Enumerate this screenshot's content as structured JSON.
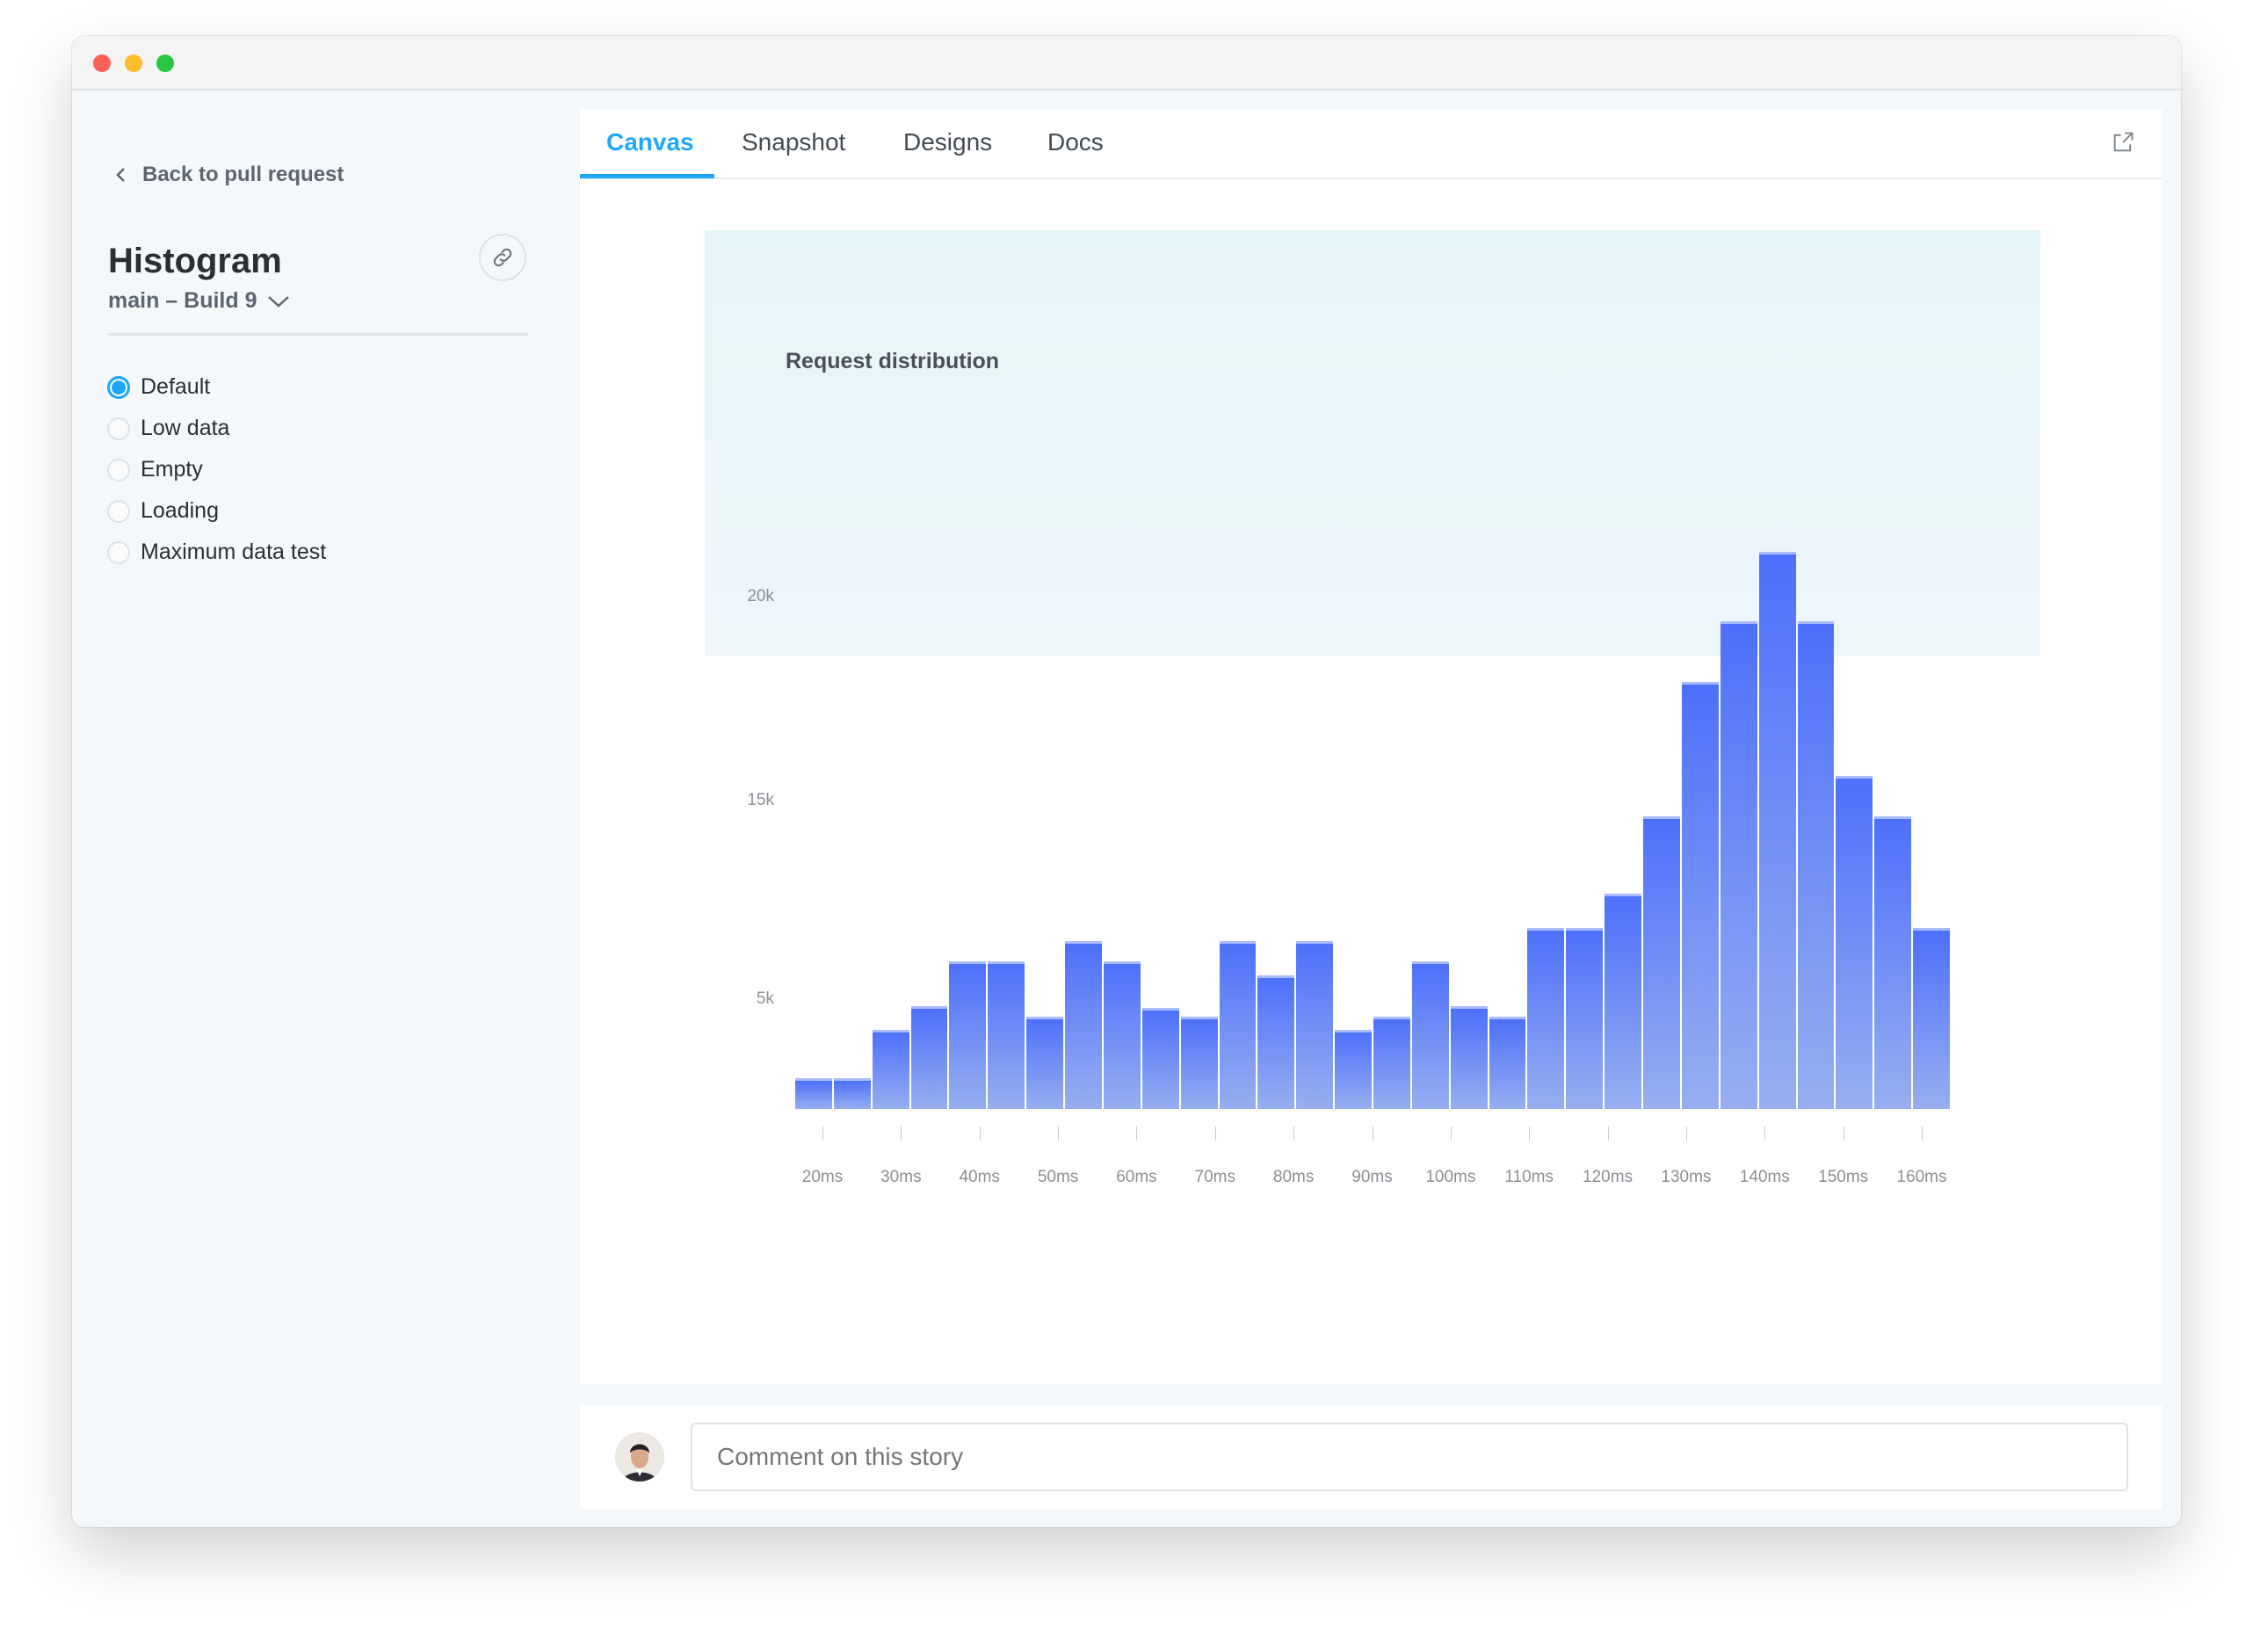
{
  "window": {
    "traffic_lights": [
      "#fd5f57",
      "#febc2e",
      "#28c840"
    ]
  },
  "sidebar": {
    "back_label": "Back to pull request",
    "title": "Histogram",
    "build": "main – Build 9",
    "stories": [
      {
        "label": "Default",
        "selected": true
      },
      {
        "label": "Low data",
        "selected": false
      },
      {
        "label": "Empty",
        "selected": false
      },
      {
        "label": "Loading",
        "selected": false
      },
      {
        "label": "Maximum data test",
        "selected": false
      }
    ]
  },
  "tabs": [
    {
      "label": "Canvas",
      "active": true
    },
    {
      "label": "Snapshot",
      "active": false
    },
    {
      "label": "Designs",
      "active": false
    },
    {
      "label": "Docs",
      "active": false
    }
  ],
  "comment": {
    "placeholder": "Comment on this story"
  },
  "colors": {
    "accent": "#1ea7fd",
    "bar_top": "#4d70fb",
    "bar_bottom": "#97aef0"
  },
  "chart_data": {
    "type": "bar",
    "title": "Request distribution",
    "xlabel": "",
    "ylabel": "",
    "x_tick_labels": [
      "20ms",
      "30ms",
      "40ms",
      "50ms",
      "60ms",
      "70ms",
      "80ms",
      "90ms",
      "100ms",
      "110ms",
      "120ms",
      "130ms",
      "140ms",
      "150ms",
      "160ms"
    ],
    "y_ticks": [
      {
        "label": "20k",
        "value": 20000
      },
      {
        "label": "15k",
        "value": 15000
      },
      {
        "label": "5k",
        "value": 5000
      }
    ],
    "values": [
      1400,
      1400,
      3600,
      4700,
      6900,
      6900,
      4200,
      7900,
      6900,
      4600,
      4200,
      7900,
      6200,
      7900,
      3600,
      4200,
      6900,
      4700,
      4200,
      8600,
      8600,
      10300,
      14200,
      17900,
      19400,
      21100,
      19400,
      15600,
      14200,
      8600
    ],
    "grid": false,
    "legend": "none"
  }
}
